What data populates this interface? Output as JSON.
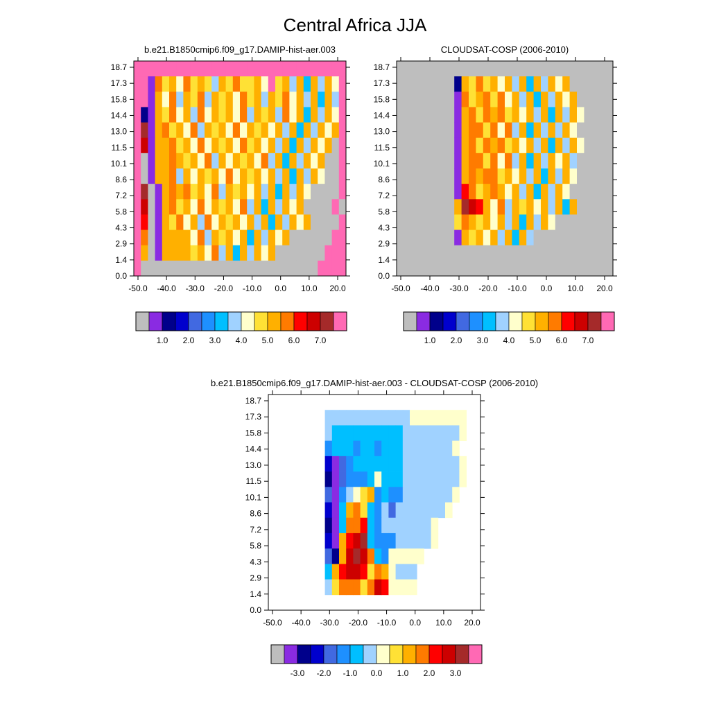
{
  "figure": {
    "title": "Central Africa JJA"
  },
  "colormap": {
    "gray": "#bebebe",
    "blank": "#ffffff",
    "colors": [
      "#bebebe",
      "#8a2be2",
      "#00008b",
      "#0000cd",
      "#4169e1",
      "#1e90ff",
      "#00bfff",
      "#a0d2ff",
      "#ffffcc",
      "#ffe135",
      "#ffb000",
      "#ff7b00",
      "#ff0000",
      "#cd0000",
      "#a52a2a",
      "#ff69b4"
    ]
  },
  "chart_data": [
    {
      "type": "heatmap",
      "title": "b.e21.B1850cmip6.f09_g17.DAMIP-hist-aer.003",
      "x_ticks": [
        "-50.0",
        "-40.0",
        "-30.0",
        "-20.0",
        "-10.0",
        "0.0",
        "10.0",
        "20.0"
      ],
      "y_ticks": [
        "0.0",
        "1.4",
        "2.9",
        "4.3",
        "5.8",
        "7.2",
        "8.6",
        "10.1",
        "11.5",
        "13.0",
        "14.4",
        "15.8",
        "17.3",
        "18.7"
      ],
      "colorbar_labels": [
        "1.0",
        "2.0",
        "3.0",
        "4.0",
        "5.0",
        "6.0",
        "7.0"
      ],
      "background": "gray",
      "rows": [
        "FFFFFFFFFFFFFFFFFFFFFFFFFFFFFF",
        "FF1B9A8B9A97A9B99A8F9A7A6A7A8F",
        "FF1A8B7A9B7A9A8B9A7A9B8A7A6A7F",
        "F21A9B8A7B8A9A8B7A9A7B8A6A7A8F",
        "FE1AB9A8B7A9A8B8A9A8A7A6A7A8AF",
        "FD1AAB9A8B8A9A8B9A8A7A6A7A8A0F",
        "F01AABA9A8B7A8A9A8B7A6A7A8A00F",
        "F01AAB7A8A9A8B8A9A8A7A6A7A800F",
        "FE01ABAB9A8B7A9A8A7A6A7A80000F",
        "FD01AB9A8B8A9A8B7A6A7A8A0000F0",
        "FC01A9B8A7B8A9A8A7A6A7A8A0000F",
        "FB01AAAA8B7A9A8A6A7A8A000000FF",
        "FA01AAAA9A8B7A6A7A8A0000000FFF",
        "F0000000000000000000000000FFFF"
      ]
    },
    {
      "type": "heatmap",
      "title": "CLOUDSAT-COSP (2006-2010)",
      "x_ticks": [
        "-50.0",
        "-40.0",
        "-30.0",
        "-20.0",
        "-10.0",
        "0.0",
        "10.0",
        "20.0"
      ],
      "y_ticks": [
        "0.0",
        "1.4",
        "2.9",
        "4.3",
        "5.8",
        "7.2",
        "8.6",
        "10.1",
        "11.5",
        "13.0",
        "14.4",
        "15.8",
        "17.3",
        "18.7"
      ],
      "colorbar_labels": [
        "1.0",
        "2.0",
        "3.0",
        "4.0",
        "5.0",
        "6.0",
        "7.0"
      ],
      "background": "gray",
      "rows": [
        "-------------------------------",
        "--------2A9B9A8A7A6A7A8A000000",
        "--------1B9AB9B8A7A6A7A8A00000",
        "--------1AB9BAB9A8A7A6A7A80000",
        "--------1ABB9B8B7A6A7A7A800000",
        "--------1AB9BAB9A8A7A6A7A80000",
        "--------1ABB9B8B7A6A7A8A700000",
        "--------1ABABB9A8A7A6A7A800000",
        "--------1CB9ABA8A7A6A7A8000000",
        "--------AEDCA8B7A9A8A7A6A00000",
        "--------9BA9A8A7A6A7A800000000",
        "--------1A9A8A7A6A70000000000",
        "--------000000000000000000000",
        "-------------------------------"
      ]
    },
    {
      "type": "heatmap",
      "title": "b.e21.B1850cmip6.f09_g17.DAMIP-hist-aer.003 - CLOUDSAT-COSP (2006-2010)",
      "x_ticks": [
        "-50.0",
        "-40.0",
        "-30.0",
        "-20.0",
        "-10.0",
        "0.0",
        "10.0",
        "20.0"
      ],
      "y_ticks": [
        "0.0",
        "1.4",
        "2.9",
        "4.3",
        "5.8",
        "7.2",
        "8.6",
        "10.1",
        "11.5",
        "13.0",
        "14.4",
        "15.8",
        "17.3",
        "18.7"
      ],
      "colorbar_labels": [
        "-3.0",
        "-2.0",
        "-1.0",
        "0.0",
        "1.0",
        "2.0",
        "3.0"
      ],
      "background": "blank",
      "rows": [
        "-------------------------------",
        "--------77777777777788888888",
        "--------76666666666777777778",
        "--------5666566566677777778",
        "--------31456666666777777778",
        "--------21455568666777777778",
        "--------415789A565577777778",
        "--------316AB9657477777778",
        "--------216BBC6577777778",
        "--------31ACDE6555777778",
        "--------42ADEDB6588888",
        "--------6ACDDC9BA8777",
        "--------79BBB9BDC8888",
        "-------------------------------"
      ]
    }
  ]
}
